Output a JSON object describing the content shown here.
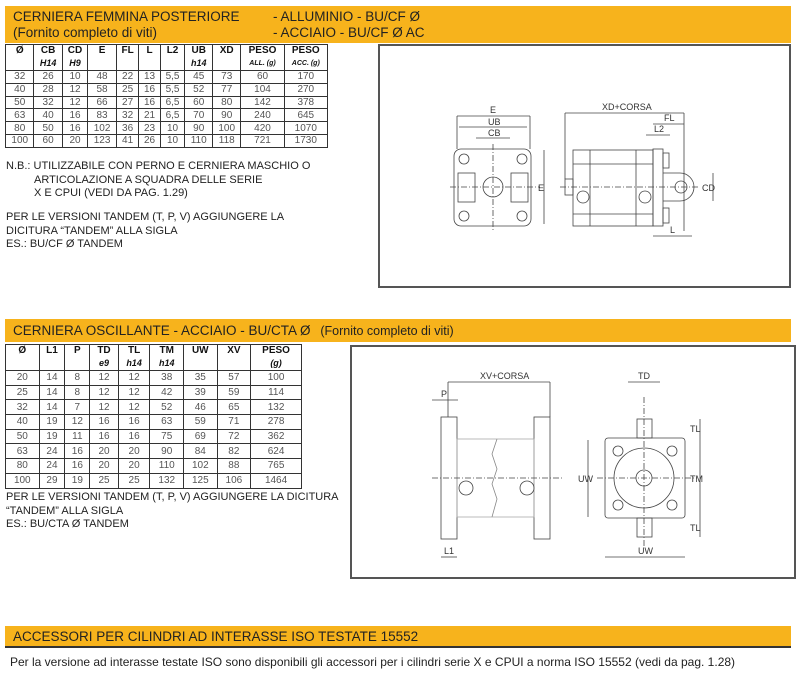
{
  "section1": {
    "title_left": "CERNIERA FEMMINA POSTERIORE",
    "subtitle_left": "(Fornito completo di viti)",
    "title_right": "- ALLUMINIO - BU/CF Ø",
    "subtitle_right": "- ACCIAIO - BU/CF Ø AC",
    "headers": [
      "Ø",
      "CB",
      "CD",
      "E",
      "FL",
      "L",
      "L2",
      "UB",
      "XD",
      "PESO",
      "PESO"
    ],
    "subheaders": [
      "",
      "H14",
      "H9",
      "",
      "",
      "",
      "",
      "h14",
      "",
      "ALL. (g)",
      "ACC. (g)"
    ],
    "rows": [
      [
        "32",
        "26",
        "10",
        "48",
        "22",
        "13",
        "5,5",
        "45",
        "73",
        "60",
        "170"
      ],
      [
        "40",
        "28",
        "12",
        "58",
        "25",
        "16",
        "5,5",
        "52",
        "77",
        "104",
        "270"
      ],
      [
        "50",
        "32",
        "12",
        "66",
        "27",
        "16",
        "6,5",
        "60",
        "80",
        "142",
        "378"
      ],
      [
        "63",
        "40",
        "16",
        "83",
        "32",
        "21",
        "6,5",
        "70",
        "90",
        "240",
        "645"
      ],
      [
        "80",
        "50",
        "16",
        "102",
        "36",
        "23",
        "10",
        "90",
        "100",
        "420",
        "1070"
      ],
      [
        "100",
        "60",
        "20",
        "123",
        "41",
        "26",
        "10",
        "110",
        "118",
        "721",
        "1730"
      ]
    ],
    "note_lines": [
      "N.B.: UTILIZZABILE CON PERNO E CERNIERA MASCHIO O",
      "ARTICOLAZIONE A SQUADRA DELLE SERIE",
      "X E CPUI (VEDI DA PAG. 1.29)"
    ],
    "tandem_lines": [
      "PER LE VERSIONI TANDEM (T, P, V) AGGIUNGERE LA",
      "DICITURA “TANDEM” ALLA SIGLA",
      "ES.: BU/CF Ø TANDEM"
    ],
    "drawing_labels": {
      "e": "E",
      "ub": "UB",
      "cb": "CB",
      "e_side": "E",
      "xd": "XD+CORSA",
      "fl": "FL",
      "l2": "L2",
      "cd": "CD",
      "l": "L"
    }
  },
  "section2": {
    "title": "CERNIERA OSCILLANTE - ACCIAIO - BU/CTA Ø",
    "subtitle": "(Fornito completo di viti)",
    "headers": [
      "Ø",
      "L1",
      "P",
      "TD",
      "TL",
      "TM",
      "UW",
      "XV",
      "PESO"
    ],
    "subheaders": [
      "",
      "",
      "",
      "e9",
      "h14",
      "h14",
      "",
      "",
      "(g)"
    ],
    "rows": [
      [
        "20",
        "14",
        "8",
        "12",
        "12",
        "38",
        "35",
        "57",
        "100"
      ],
      [
        "25",
        "14",
        "8",
        "12",
        "12",
        "42",
        "39",
        "59",
        "114"
      ],
      [
        "32",
        "14",
        "7",
        "12",
        "12",
        "52",
        "46",
        "65",
        "132"
      ],
      [
        "40",
        "19",
        "12",
        "16",
        "16",
        "63",
        "59",
        "71",
        "278"
      ],
      [
        "50",
        "19",
        "11",
        "16",
        "16",
        "75",
        "69",
        "72",
        "362"
      ],
      [
        "63",
        "24",
        "16",
        "20",
        "20",
        "90",
        "84",
        "82",
        "624"
      ],
      [
        "80",
        "24",
        "16",
        "20",
        "20",
        "110",
        "102",
        "88",
        "765"
      ],
      [
        "100",
        "29",
        "19",
        "25",
        "25",
        "132",
        "125",
        "106",
        "1464"
      ]
    ],
    "tandem_lines": [
      "PER LE VERSIONI TANDEM (T, P, V) AGGIUNGERE LA DICITURA",
      "“TANDEM” ALLA SIGLA",
      "ES.: BU/CTA Ø TANDEM"
    ],
    "drawing_labels": {
      "xv": "XV+CORSA",
      "p": "P",
      "l1": "L1",
      "td": "TD",
      "tl_top": "TL",
      "tl_bottom": "TL",
      "tm": "TM",
      "uw_side": "UW",
      "uw_bottom": "UW"
    }
  },
  "section3": {
    "title": "ACCESSORI PER CILINDRI AD INTERASSE ISO TESTATE 15552",
    "text": "Per la versione ad interasse testate ISO sono disponibili gli accessori per i cilindri serie X e CPUI a norma ISO 15552 (vedi da pag. 1.28)"
  },
  "colors": {
    "accent": "#f7b31c",
    "border": "#555555"
  }
}
